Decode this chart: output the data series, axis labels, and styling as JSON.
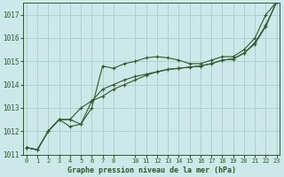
{
  "title": "Graphe pression niveau de la mer (hPa)",
  "bg_color": "#cce8e8",
  "grid_color": "#aacccc",
  "line_color": "#2d5a2d",
  "marker_color": "#2d5a2d",
  "ylim": [
    1011.0,
    1017.5
  ],
  "yticks": [
    1011,
    1012,
    1013,
    1014,
    1015,
    1016,
    1017
  ],
  "xlim": [
    -0.3,
    23.3
  ],
  "xticks": [
    0,
    1,
    2,
    3,
    4,
    5,
    6,
    7,
    8,
    10,
    11,
    12,
    13,
    14,
    15,
    16,
    17,
    18,
    19,
    20,
    21,
    22,
    23
  ],
  "series": [
    [
      1011.3,
      1011.2,
      1012.0,
      1012.5,
      1012.5,
      1012.3,
      1013.0,
      1014.8,
      1014.7,
      1014.9,
      1015.0,
      1015.15,
      1015.2,
      1015.15,
      1015.05,
      1014.9,
      1014.9,
      1015.05,
      1015.2,
      1015.2,
      1015.5,
      1016.0,
      1017.0,
      1017.55
    ],
    [
      1011.3,
      1011.2,
      1012.0,
      1012.5,
      1012.5,
      1013.0,
      1013.3,
      1013.5,
      1013.8,
      1014.0,
      1014.2,
      1014.4,
      1014.55,
      1014.65,
      1014.7,
      1014.75,
      1014.8,
      1014.9,
      1015.05,
      1015.1,
      1015.35,
      1015.8,
      1016.55,
      1017.55
    ],
    [
      1011.3,
      1011.2,
      1012.0,
      1012.5,
      1012.2,
      1012.3,
      1013.3,
      1013.8,
      1014.0,
      1014.2,
      1014.35,
      1014.45,
      1014.55,
      1014.65,
      1014.7,
      1014.75,
      1014.8,
      1014.9,
      1015.05,
      1015.1,
      1015.35,
      1015.75,
      1016.5,
      1017.55
    ]
  ],
  "hours": [
    0,
    1,
    2,
    3,
    4,
    5,
    6,
    7,
    8,
    9,
    10,
    11,
    12,
    13,
    14,
    15,
    16,
    17,
    18,
    19,
    20,
    21,
    22,
    23
  ]
}
